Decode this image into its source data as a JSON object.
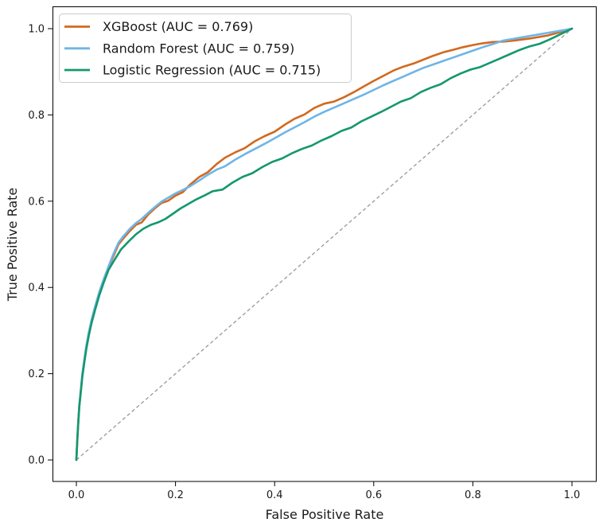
{
  "chart_data": {
    "type": "line",
    "title": "",
    "xlabel": "False Positive Rate",
    "ylabel": "True Positive Rate",
    "xlim": [
      -0.05,
      1.05
    ],
    "ylim": [
      -0.05,
      1.05
    ],
    "grid": false,
    "x_ticks": {
      "values": [
        0,
        0.2,
        0.4,
        0.6,
        0.8,
        1.0
      ],
      "labels": [
        "0.0",
        "0.2",
        "0.4",
        "0.6",
        "0.8",
        "1.0"
      ]
    },
    "y_ticks": {
      "values": [
        0,
        0.2,
        0.4,
        0.6,
        0.8,
        1.0
      ],
      "labels": [
        "0.0",
        "0.2",
        "0.4",
        "0.6",
        "0.8",
        "1.0"
      ]
    },
    "legend": {
      "position": "upper-left",
      "border_color": "#cccccc",
      "background": "#ffffff"
    },
    "reference_line": {
      "name": "chance-diagonal",
      "style": "dashed",
      "color": "#999999",
      "points": [
        [
          0,
          0
        ],
        [
          1,
          1
        ]
      ]
    },
    "series": [
      {
        "name": "XGBoost",
        "label": "XGBoost (AUC = 0.769)",
        "auc": 0.769,
        "color": "#D2691E",
        "points": [
          [
            0,
            0
          ],
          [
            0.002,
            0.045
          ],
          [
            0.004,
            0.09
          ],
          [
            0.006,
            0.125
          ],
          [
            0.009,
            0.16
          ],
          [
            0.012,
            0.197
          ],
          [
            0.016,
            0.23
          ],
          [
            0.02,
            0.262
          ],
          [
            0.025,
            0.294
          ],
          [
            0.031,
            0.324
          ],
          [
            0.038,
            0.354
          ],
          [
            0.046,
            0.386
          ],
          [
            0.055,
            0.417
          ],
          [
            0.065,
            0.447
          ],
          [
            0.075,
            0.473
          ],
          [
            0.085,
            0.5
          ],
          [
            0.095,
            0.514
          ],
          [
            0.108,
            0.531
          ],
          [
            0.12,
            0.545
          ],
          [
            0.132,
            0.551
          ],
          [
            0.145,
            0.569
          ],
          [
            0.158,
            0.583
          ],
          [
            0.172,
            0.596
          ],
          [
            0.185,
            0.601
          ],
          [
            0.2,
            0.613
          ],
          [
            0.215,
            0.621
          ],
          [
            0.23,
            0.639
          ],
          [
            0.248,
            0.656
          ],
          [
            0.265,
            0.667
          ],
          [
            0.283,
            0.686
          ],
          [
            0.3,
            0.701
          ],
          [
            0.32,
            0.713
          ],
          [
            0.34,
            0.723
          ],
          [
            0.36,
            0.739
          ],
          [
            0.38,
            0.751
          ],
          [
            0.4,
            0.761
          ],
          [
            0.42,
            0.777
          ],
          [
            0.44,
            0.791
          ],
          [
            0.46,
            0.801
          ],
          [
            0.48,
            0.816
          ],
          [
            0.5,
            0.826
          ],
          [
            0.52,
            0.831
          ],
          [
            0.54,
            0.841
          ],
          [
            0.56,
            0.853
          ],
          [
            0.58,
            0.866
          ],
          [
            0.6,
            0.879
          ],
          [
            0.62,
            0.891
          ],
          [
            0.64,
            0.903
          ],
          [
            0.66,
            0.912
          ],
          [
            0.68,
            0.919
          ],
          [
            0.7,
            0.928
          ],
          [
            0.72,
            0.937
          ],
          [
            0.74,
            0.945
          ],
          [
            0.76,
            0.951
          ],
          [
            0.78,
            0.957
          ],
          [
            0.8,
            0.962
          ],
          [
            0.82,
            0.966
          ],
          [
            0.84,
            0.969
          ],
          [
            0.86,
            0.97
          ],
          [
            0.88,
            0.972
          ],
          [
            0.9,
            0.975
          ],
          [
            0.92,
            0.978
          ],
          [
            0.95,
            0.984
          ],
          [
            0.97,
            0.99
          ],
          [
            1,
            1
          ]
        ]
      },
      {
        "name": "Random Forest",
        "label": "Random Forest (AUC = 0.759)",
        "auc": 0.759,
        "color": "#6FB5E6",
        "points": [
          [
            0,
            0
          ],
          [
            0.002,
            0.05
          ],
          [
            0.004,
            0.092
          ],
          [
            0.006,
            0.128
          ],
          [
            0.009,
            0.163
          ],
          [
            0.012,
            0.2
          ],
          [
            0.016,
            0.233
          ],
          [
            0.02,
            0.265
          ],
          [
            0.025,
            0.296
          ],
          [
            0.031,
            0.327
          ],
          [
            0.038,
            0.357
          ],
          [
            0.046,
            0.389
          ],
          [
            0.055,
            0.419
          ],
          [
            0.065,
            0.449
          ],
          [
            0.075,
            0.478
          ],
          [
            0.085,
            0.504
          ],
          [
            0.095,
            0.519
          ],
          [
            0.108,
            0.536
          ],
          [
            0.12,
            0.549
          ],
          [
            0.132,
            0.559
          ],
          [
            0.145,
            0.573
          ],
          [
            0.158,
            0.586
          ],
          [
            0.172,
            0.599
          ],
          [
            0.185,
            0.608
          ],
          [
            0.2,
            0.618
          ],
          [
            0.215,
            0.626
          ],
          [
            0.23,
            0.635
          ],
          [
            0.248,
            0.648
          ],
          [
            0.265,
            0.661
          ],
          [
            0.283,
            0.673
          ],
          [
            0.3,
            0.681
          ],
          [
            0.32,
            0.696
          ],
          [
            0.34,
            0.709
          ],
          [
            0.36,
            0.721
          ],
          [
            0.38,
            0.733
          ],
          [
            0.4,
            0.746
          ],
          [
            0.42,
            0.759
          ],
          [
            0.44,
            0.771
          ],
          [
            0.46,
            0.783
          ],
          [
            0.48,
            0.796
          ],
          [
            0.5,
            0.807
          ],
          [
            0.52,
            0.817
          ],
          [
            0.54,
            0.827
          ],
          [
            0.56,
            0.837
          ],
          [
            0.58,
            0.847
          ],
          [
            0.6,
            0.858
          ],
          [
            0.62,
            0.869
          ],
          [
            0.64,
            0.879
          ],
          [
            0.66,
            0.889
          ],
          [
            0.68,
            0.899
          ],
          [
            0.7,
            0.909
          ],
          [
            0.72,
            0.917
          ],
          [
            0.74,
            0.925
          ],
          [
            0.76,
            0.933
          ],
          [
            0.78,
            0.941
          ],
          [
            0.8,
            0.949
          ],
          [
            0.82,
            0.957
          ],
          [
            0.84,
            0.964
          ],
          [
            0.86,
            0.972
          ],
          [
            0.88,
            0.976
          ],
          [
            0.9,
            0.98
          ],
          [
            0.92,
            0.984
          ],
          [
            0.95,
            0.99
          ],
          [
            0.97,
            0.994
          ],
          [
            1,
            1
          ]
        ]
      },
      {
        "name": "Logistic Regression",
        "label": "Logistic Regression (AUC = 0.715)",
        "auc": 0.715,
        "color": "#14976E",
        "points": [
          [
            0,
            0
          ],
          [
            0.002,
            0.048
          ],
          [
            0.004,
            0.09
          ],
          [
            0.006,
            0.124
          ],
          [
            0.009,
            0.158
          ],
          [
            0.012,
            0.193
          ],
          [
            0.016,
            0.226
          ],
          [
            0.02,
            0.257
          ],
          [
            0.025,
            0.288
          ],
          [
            0.031,
            0.319
          ],
          [
            0.038,
            0.349
          ],
          [
            0.046,
            0.381
          ],
          [
            0.055,
            0.411
          ],
          [
            0.065,
            0.441
          ],
          [
            0.078,
            0.466
          ],
          [
            0.09,
            0.488
          ],
          [
            0.105,
            0.506
          ],
          [
            0.12,
            0.523
          ],
          [
            0.135,
            0.536
          ],
          [
            0.15,
            0.545
          ],
          [
            0.165,
            0.551
          ],
          [
            0.18,
            0.559
          ],
          [
            0.195,
            0.571
          ],
          [
            0.21,
            0.583
          ],
          [
            0.225,
            0.593
          ],
          [
            0.24,
            0.603
          ],
          [
            0.258,
            0.613
          ],
          [
            0.275,
            0.623
          ],
          [
            0.295,
            0.627
          ],
          [
            0.315,
            0.643
          ],
          [
            0.335,
            0.656
          ],
          [
            0.355,
            0.665
          ],
          [
            0.375,
            0.679
          ],
          [
            0.395,
            0.691
          ],
          [
            0.415,
            0.699
          ],
          [
            0.435,
            0.711
          ],
          [
            0.455,
            0.721
          ],
          [
            0.475,
            0.729
          ],
          [
            0.495,
            0.741
          ],
          [
            0.515,
            0.751
          ],
          [
            0.535,
            0.763
          ],
          [
            0.555,
            0.771
          ],
          [
            0.575,
            0.785
          ],
          [
            0.595,
            0.796
          ],
          [
            0.615,
            0.807
          ],
          [
            0.635,
            0.819
          ],
          [
            0.655,
            0.831
          ],
          [
            0.675,
            0.839
          ],
          [
            0.695,
            0.853
          ],
          [
            0.715,
            0.863
          ],
          [
            0.735,
            0.871
          ],
          [
            0.755,
            0.885
          ],
          [
            0.775,
            0.896
          ],
          [
            0.795,
            0.905
          ],
          [
            0.815,
            0.911
          ],
          [
            0.835,
            0.921
          ],
          [
            0.855,
            0.931
          ],
          [
            0.875,
            0.941
          ],
          [
            0.895,
            0.951
          ],
          [
            0.915,
            0.959
          ],
          [
            0.935,
            0.965
          ],
          [
            0.955,
            0.975
          ],
          [
            0.975,
            0.986
          ],
          [
            1,
            1
          ]
        ]
      }
    ]
  }
}
